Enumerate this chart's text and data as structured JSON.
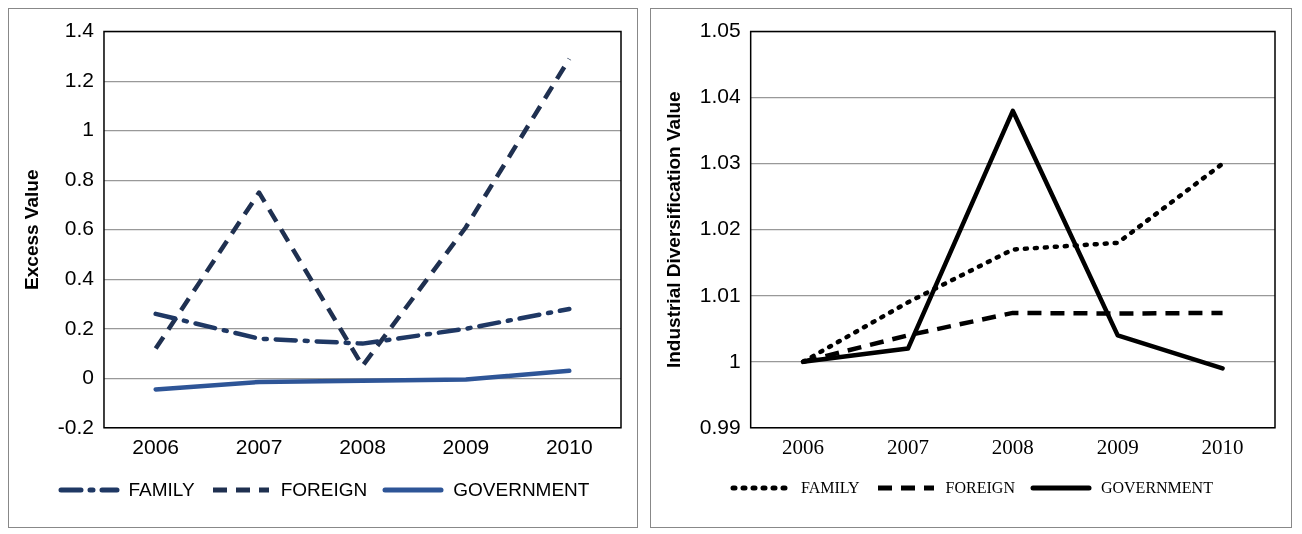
{
  "chart_data": [
    {
      "type": "line",
      "ylabel": "Excess Value",
      "categories": [
        "2006",
        "2007",
        "2008",
        "2009",
        "2010"
      ],
      "ylim": [
        -0.2,
        1.4
      ],
      "yticks": [
        -0.2,
        0,
        0.2,
        0.4,
        0.6,
        0.8,
        1,
        1.2,
        1.4
      ],
      "grid": "y",
      "legend": "bottom",
      "marker": "none",
      "series": [
        {
          "name": "FAMILY",
          "color": "#1f3864",
          "line_style": "dashdot",
          "values": [
            0.26,
            0.16,
            0.14,
            0.2,
            0.28
          ]
        },
        {
          "name": "FOREIGN",
          "color": "#1f3050",
          "line_style": "dashed",
          "values": [
            0.12,
            0.75,
            0.05,
            0.61,
            1.29
          ]
        },
        {
          "name": "GOVERNMENT",
          "color": "#2e5597",
          "line_style": "solid",
          "values": [
            -0.045,
            -0.015,
            -0.01,
            -0.005,
            0.03
          ]
        }
      ]
    },
    {
      "type": "line",
      "ylabel": "Industrial Diversification Value",
      "categories": [
        "2006",
        "2007",
        "2008",
        "2009",
        "2010"
      ],
      "ylim": [
        0.99,
        1.05
      ],
      "yticks": [
        0.99,
        1,
        1.01,
        1.02,
        1.03,
        1.04,
        1.05
      ],
      "grid": "y",
      "legend": "bottom",
      "marker": "none",
      "series": [
        {
          "name": "FAMILY",
          "color": "#000000",
          "line_style": "dotted",
          "values": [
            1,
            1.009,
            1.017,
            1.018,
            1.03
          ]
        },
        {
          "name": "FOREIGN",
          "color": "#000000",
          "line_style": "dashed",
          "values": [
            1,
            1.004,
            1.0074,
            1.0073,
            1.0074
          ]
        },
        {
          "name": "GOVERNMENT",
          "color": "#000000",
          "line_style": "solid",
          "values": [
            1,
            1.002,
            1.038,
            1.004,
            0.999
          ]
        }
      ]
    }
  ]
}
